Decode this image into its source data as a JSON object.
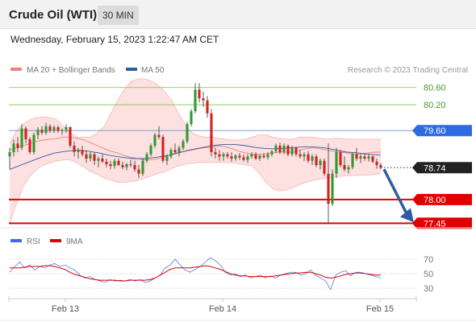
{
  "header": {
    "title": "Crude Oil (WTI)",
    "timeframe": "30 MIN",
    "timestamp": "Wednesday, February 15, 2023 1:22:47 AM CET"
  },
  "legend": {
    "items": [
      {
        "label": "MA 20 + Bollinger Bands",
        "color": "#f08080"
      },
      {
        "label": "MA 50",
        "color": "#2f5d9e"
      }
    ],
    "credit": "Research © 2023 Trading Central"
  },
  "rsi_legend": {
    "items": [
      {
        "label": "RSI",
        "color": "#4169e1"
      },
      {
        "label": "9MA",
        "color": "#e00000"
      }
    ]
  },
  "chart_data": [
    {
      "type": "candlestick",
      "title": "Crude Oil (WTI)",
      "timeframe": "30 MIN",
      "x_ticks": [
        "Feb 13",
        "Feb 14",
        "Feb 15"
      ],
      "ylim": [
        77.4,
        80.8
      ],
      "levels": [
        {
          "value": 80.6,
          "label": "80.60",
          "style": "thin",
          "color": "#8fc860",
          "label_color": "#4a9a20",
          "tag": false
        },
        {
          "value": 80.2,
          "label": "80.20",
          "style": "thin",
          "color": "#8fc860",
          "label_color": "#4a9a20",
          "tag": false
        },
        {
          "value": 79.6,
          "label": "79.60",
          "style": "thin",
          "color": "#6a8fe0",
          "label_color": "#ffffff",
          "tag": true,
          "tag_color": "#2f6be0"
        },
        {
          "value": 78.74,
          "label": "78.74",
          "style": "dotted",
          "color": "#333333",
          "label_color": "#ffffff",
          "tag": true,
          "tag_color": "#222222"
        },
        {
          "value": 78.0,
          "label": "78.00",
          "style": "thick",
          "color": "#e00000",
          "label_color": "#ffffff",
          "tag": true,
          "tag_color": "#e00000"
        },
        {
          "value": 77.45,
          "label": "77.45",
          "style": "thick",
          "color": "#e00000",
          "label_color": "#ffffff",
          "tag": true,
          "tag_color": "#e00000"
        }
      ],
      "current_price": 78.74,
      "forecast_arrow": {
        "from": 78.74,
        "to": 77.45,
        "direction": "down",
        "color": "#2f5d9e"
      },
      "candles_ohlc": [
        [
          79.0,
          79.2,
          78.7,
          79.1
        ],
        [
          79.1,
          79.4,
          79.0,
          79.3
        ],
        [
          79.3,
          79.45,
          79.1,
          79.2
        ],
        [
          79.2,
          79.75,
          79.15,
          79.65
        ],
        [
          79.65,
          79.7,
          79.3,
          79.4
        ],
        [
          79.4,
          79.45,
          79.05,
          79.1
        ],
        [
          79.1,
          79.55,
          79.05,
          79.5
        ],
        [
          79.5,
          79.68,
          79.4,
          79.62
        ],
        [
          79.62,
          79.7,
          79.5,
          79.55
        ],
        [
          79.55,
          79.78,
          79.5,
          79.7
        ],
        [
          79.7,
          79.75,
          79.55,
          79.6
        ],
        [
          79.6,
          79.72,
          79.55,
          79.68
        ],
        [
          79.68,
          79.72,
          79.55,
          79.6
        ],
        [
          79.6,
          79.65,
          79.5,
          79.62
        ],
        [
          79.62,
          79.75,
          79.55,
          79.68
        ],
        [
          79.68,
          79.7,
          79.2,
          79.25
        ],
        [
          79.25,
          79.35,
          79.0,
          79.1
        ],
        [
          79.1,
          79.2,
          78.95,
          79.15
        ],
        [
          79.15,
          79.25,
          79.0,
          79.05
        ],
        [
          79.05,
          79.15,
          78.85,
          78.95
        ],
        [
          78.95,
          79.1,
          78.88,
          79.05
        ],
        [
          79.05,
          79.1,
          78.8,
          78.9
        ],
        [
          78.9,
          79.0,
          78.75,
          78.95
        ],
        [
          78.95,
          79.05,
          78.85,
          78.88
        ],
        [
          78.88,
          78.95,
          78.75,
          78.82
        ],
        [
          78.82,
          78.9,
          78.7,
          78.78
        ],
        [
          78.78,
          78.95,
          78.72,
          78.9
        ],
        [
          78.9,
          78.95,
          78.78,
          78.8
        ],
        [
          78.8,
          78.88,
          78.7,
          78.75
        ],
        [
          78.75,
          78.85,
          78.68,
          78.82
        ],
        [
          78.82,
          78.92,
          78.75,
          78.8
        ],
        [
          78.8,
          78.9,
          78.65,
          78.7
        ],
        [
          78.7,
          78.8,
          78.5,
          78.6
        ],
        [
          78.6,
          78.95,
          78.55,
          78.9
        ],
        [
          78.9,
          79.1,
          78.85,
          79.05
        ],
        [
          79.05,
          79.3,
          79.0,
          79.25
        ],
        [
          79.25,
          79.55,
          79.2,
          79.5
        ],
        [
          79.5,
          79.7,
          79.4,
          79.45
        ],
        [
          79.45,
          79.5,
          78.85,
          78.9
        ],
        [
          78.9,
          79.05,
          78.8,
          79.0
        ],
        [
          79.0,
          79.2,
          78.95,
          79.15
        ],
        [
          79.15,
          79.3,
          79.05,
          79.1
        ],
        [
          79.1,
          79.25,
          79.0,
          79.2
        ],
        [
          79.2,
          79.4,
          79.15,
          79.35
        ],
        [
          79.35,
          79.8,
          79.3,
          79.75
        ],
        [
          79.75,
          80.1,
          79.7,
          80.05
        ],
        [
          80.05,
          80.7,
          80.0,
          80.55
        ],
        [
          80.55,
          80.7,
          80.25,
          80.35
        ],
        [
          80.35,
          80.5,
          80.15,
          80.3
        ],
        [
          80.3,
          80.4,
          79.9,
          80.0
        ],
        [
          80.0,
          80.1,
          79.0,
          79.1
        ],
        [
          79.1,
          79.2,
          78.95,
          79.05
        ],
        [
          79.05,
          79.15,
          78.9,
          79.0
        ],
        [
          79.0,
          79.1,
          78.9,
          79.05
        ],
        [
          79.05,
          79.1,
          78.95,
          79.0
        ],
        [
          79.0,
          79.1,
          78.88,
          78.95
        ],
        [
          78.95,
          79.05,
          78.9,
          79.02
        ],
        [
          79.02,
          79.08,
          78.92,
          78.98
        ],
        [
          78.98,
          79.05,
          78.88,
          78.92
        ],
        [
          78.92,
          79.05,
          78.85,
          79.0
        ],
        [
          79.0,
          79.1,
          78.95,
          79.05
        ],
        [
          79.05,
          79.1,
          78.92,
          78.95
        ],
        [
          78.95,
          79.05,
          78.9,
          79.02
        ],
        [
          79.02,
          79.08,
          78.95,
          78.98
        ],
        [
          78.98,
          79.1,
          78.92,
          79.05
        ],
        [
          79.05,
          79.15,
          79.0,
          79.12
        ],
        [
          79.12,
          79.3,
          79.08,
          79.25
        ],
        [
          79.25,
          79.32,
          79.05,
          79.1
        ],
        [
          79.1,
          79.3,
          79.05,
          79.25
        ],
        [
          79.25,
          79.28,
          79.0,
          79.05
        ],
        [
          79.05,
          79.25,
          79.0,
          79.2
        ],
        [
          79.2,
          79.22,
          79.0,
          79.05
        ],
        [
          79.05,
          79.15,
          78.95,
          79.0
        ],
        [
          79.0,
          79.1,
          78.9,
          79.05
        ],
        [
          79.05,
          79.12,
          78.85,
          78.9
        ],
        [
          78.9,
          79.05,
          78.8,
          79.0
        ],
        [
          79.0,
          79.05,
          78.75,
          78.8
        ],
        [
          78.8,
          78.95,
          78.7,
          78.9
        ],
        [
          78.9,
          78.95,
          78.55,
          78.6
        ],
        [
          78.6,
          79.3,
          77.45,
          77.9
        ],
        [
          77.9,
          78.7,
          77.85,
          78.6
        ],
        [
          78.6,
          79.2,
          78.5,
          79.1
        ],
        [
          79.1,
          79.15,
          78.75,
          78.8
        ],
        [
          78.8,
          79.0,
          78.65,
          78.7
        ],
        [
          78.7,
          78.8,
          78.6,
          78.75
        ],
        [
          78.75,
          79.1,
          78.7,
          79.05
        ],
        [
          79.05,
          79.2,
          78.9,
          78.95
        ],
        [
          78.95,
          79.05,
          78.85,
          79.0
        ],
        [
          79.0,
          79.08,
          78.9,
          78.95
        ],
        [
          78.95,
          79.05,
          78.88,
          79.0
        ],
        [
          79.0,
          79.02,
          78.85,
          78.88
        ],
        [
          78.88,
          78.95,
          78.72,
          78.8
        ],
        [
          78.8,
          78.85,
          78.7,
          78.74
        ]
      ],
      "ma20_bollinger": {
        "middle": [
          79.15,
          79.2,
          79.25,
          79.3,
          79.35,
          79.38,
          79.4,
          79.42,
          79.45,
          79.45,
          79.42,
          79.38,
          79.32,
          79.25,
          79.18,
          79.12,
          79.08,
          79.02,
          78.98,
          78.95,
          78.92,
          78.92,
          78.95,
          79.0,
          79.05,
          79.1,
          79.12,
          79.15,
          79.18,
          79.2,
          79.22,
          79.25,
          79.22,
          79.18,
          79.12,
          79.08,
          79.05,
          79.05,
          79.06,
          79.08,
          79.1,
          79.1,
          79.1,
          79.15,
          79.18,
          79.2,
          79.18,
          79.15,
          79.12,
          79.1,
          79.08,
          79.05,
          79.05,
          79.08,
          79.1,
          79.1
        ],
        "upper": [
          79.3,
          79.6,
          79.75,
          79.85,
          79.9,
          79.92,
          79.9,
          79.85,
          79.7,
          79.55,
          79.45,
          79.45,
          79.45,
          79.55,
          79.7,
          80.0,
          80.3,
          80.55,
          80.75,
          80.8,
          80.8,
          80.75,
          80.65,
          80.5,
          80.3,
          80.0,
          79.75,
          79.55,
          79.48,
          79.45,
          79.45,
          79.42,
          79.4,
          79.38,
          79.38,
          79.4,
          79.45,
          79.5,
          79.5,
          79.45,
          79.42,
          79.4,
          79.4,
          79.45,
          79.45,
          79.45,
          79.42,
          79.4,
          79.42,
          79.42,
          79.4,
          79.4,
          79.4,
          79.4,
          79.4,
          79.4
        ],
        "lower": [
          77.45,
          77.9,
          78.3,
          78.55,
          78.7,
          78.8,
          78.85,
          78.9,
          78.92,
          78.92,
          78.85,
          78.75,
          78.65,
          78.58,
          78.5,
          78.45,
          78.4,
          78.4,
          78.42,
          78.45,
          78.5,
          78.55,
          78.6,
          78.65,
          78.72,
          78.78,
          78.82,
          78.84,
          78.86,
          78.86,
          78.86,
          78.87,
          78.86,
          78.85,
          78.83,
          78.8,
          78.78,
          78.6,
          78.4,
          78.25,
          78.2,
          78.22,
          78.28,
          78.35,
          78.4,
          78.45,
          78.48,
          78.5,
          78.52,
          78.54,
          78.55,
          78.56,
          78.56,
          78.57,
          78.58,
          78.6
        ]
      },
      "ma50": [
        78.7,
        78.8,
        78.9,
        79.0,
        79.08,
        79.12,
        79.15,
        79.12,
        79.08,
        79.02,
        78.98,
        78.95,
        78.95,
        78.98,
        79.02,
        79.08,
        79.15,
        79.2,
        79.25,
        79.28,
        79.28,
        79.25,
        79.2,
        79.18,
        79.18,
        79.2,
        79.22,
        79.22,
        79.2,
        79.15,
        79.1,
        79.08,
        79.05,
        79.03
      ]
    },
    {
      "type": "line",
      "title": "RSI",
      "series": [
        {
          "name": "RSI",
          "color": "#4169e1",
          "values": [
            52,
            60,
            66,
            58,
            62,
            55,
            60,
            58,
            62,
            64,
            60,
            62,
            58,
            55,
            48,
            44,
            46,
            42,
            40,
            38,
            42,
            40,
            41,
            40,
            42,
            40,
            42,
            38,
            40,
            44,
            48,
            58,
            62,
            70,
            62,
            55,
            52,
            56,
            60,
            66,
            72,
            68,
            62,
            52,
            48,
            50,
            46,
            48,
            44,
            46,
            48,
            44,
            47,
            44,
            48,
            50,
            52,
            52,
            48,
            50,
            55,
            48,
            44,
            40,
            28,
            48,
            52,
            54,
            47,
            52,
            52,
            50,
            48,
            46,
            44
          ]
        },
        {
          "name": "9MA",
          "color": "#e00000",
          "values": [
            58,
            58,
            58,
            59,
            60,
            60,
            60,
            61,
            61,
            60,
            58,
            56,
            52,
            49,
            47,
            45,
            43,
            42,
            41,
            41,
            41,
            41,
            40,
            40,
            41,
            41,
            41,
            41,
            42,
            44,
            48,
            52,
            56,
            58,
            58,
            58,
            58,
            59,
            60,
            61,
            60,
            58,
            56,
            53,
            50,
            48,
            47,
            47,
            46,
            46,
            46,
            46,
            46,
            47,
            48,
            49,
            50,
            51,
            51,
            52,
            52,
            50,
            48,
            45,
            44,
            45,
            47,
            49,
            50,
            51,
            51,
            50,
            49,
            48,
            48
          ]
        }
      ],
      "ylim": [
        20,
        80
      ],
      "y_ticks": [
        70,
        50,
        30
      ]
    }
  ]
}
